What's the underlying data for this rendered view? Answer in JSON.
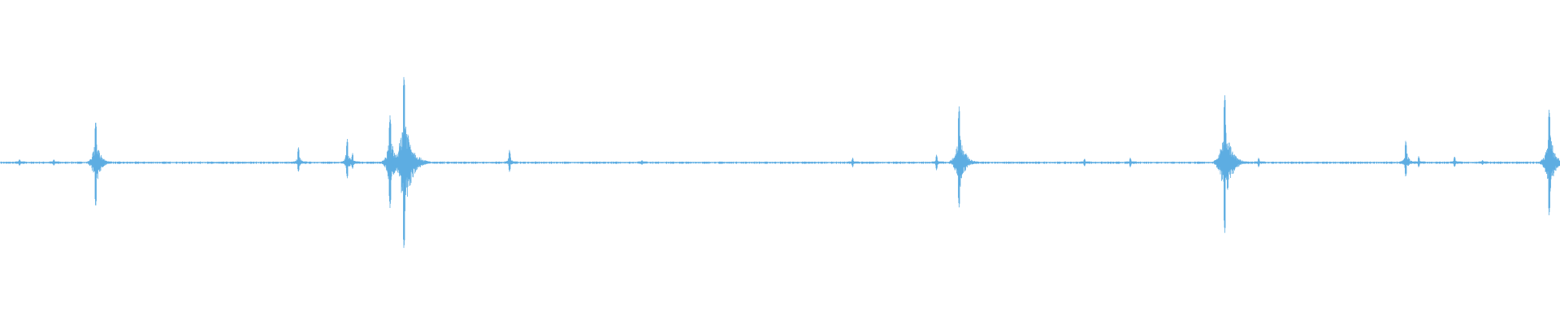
{
  "waveform": {
    "color": "#5dade2",
    "background": "#ffffff",
    "baseline_noise": 0.006,
    "events": [
      {
        "time_fraction": 0.0125,
        "peak_up": 0.02,
        "peak_down": 0.02
      },
      {
        "time_fraction": 0.0345,
        "peak_up": 0.02,
        "peak_down": 0.02
      },
      {
        "time_fraction": 0.0613,
        "peak_up": 0.26,
        "peak_down": 0.28
      },
      {
        "time_fraction": 0.1913,
        "peak_up": 0.1,
        "peak_down": 0.06
      },
      {
        "time_fraction": 0.2226,
        "peak_up": 0.15,
        "peak_down": 0.1
      },
      {
        "time_fraction": 0.226,
        "peak_up": 0.06,
        "peak_down": 0.04
      },
      {
        "time_fraction": 0.25,
        "peak_up": 0.29,
        "peak_down": 0.28
      },
      {
        "time_fraction": 0.2589,
        "peak_up": 0.535,
        "peak_down": 0.535
      },
      {
        "time_fraction": 0.3266,
        "peak_up": 0.08,
        "peak_down": 0.06
      },
      {
        "time_fraction": 0.4115,
        "peak_up": 0.015,
        "peak_down": 0.015
      },
      {
        "time_fraction": 0.5466,
        "peak_up": 0.03,
        "peak_down": 0.03
      },
      {
        "time_fraction": 0.6003,
        "peak_up": 0.05,
        "peak_down": 0.05
      },
      {
        "time_fraction": 0.6148,
        "peak_up": 0.35,
        "peak_down": 0.28
      },
      {
        "time_fraction": 0.6952,
        "peak_up": 0.025,
        "peak_down": 0.025
      },
      {
        "time_fraction": 0.7245,
        "peak_up": 0.03,
        "peak_down": 0.03
      },
      {
        "time_fraction": 0.7851,
        "peak_up": 0.42,
        "peak_down": 0.44
      },
      {
        "time_fraction": 0.8068,
        "peak_up": 0.03,
        "peak_down": 0.03
      },
      {
        "time_fraction": 0.9011,
        "peak_up": 0.14,
        "peak_down": 0.09
      },
      {
        "time_fraction": 0.9094,
        "peak_up": 0.04,
        "peak_down": 0.03
      },
      {
        "time_fraction": 0.9324,
        "peak_up": 0.04,
        "peak_down": 0.03
      },
      {
        "time_fraction": 0.9503,
        "peak_up": 0.015,
        "peak_down": 0.015
      },
      {
        "time_fraction": 0.993,
        "peak_up": 0.33,
        "peak_down": 0.33
      }
    ]
  }
}
